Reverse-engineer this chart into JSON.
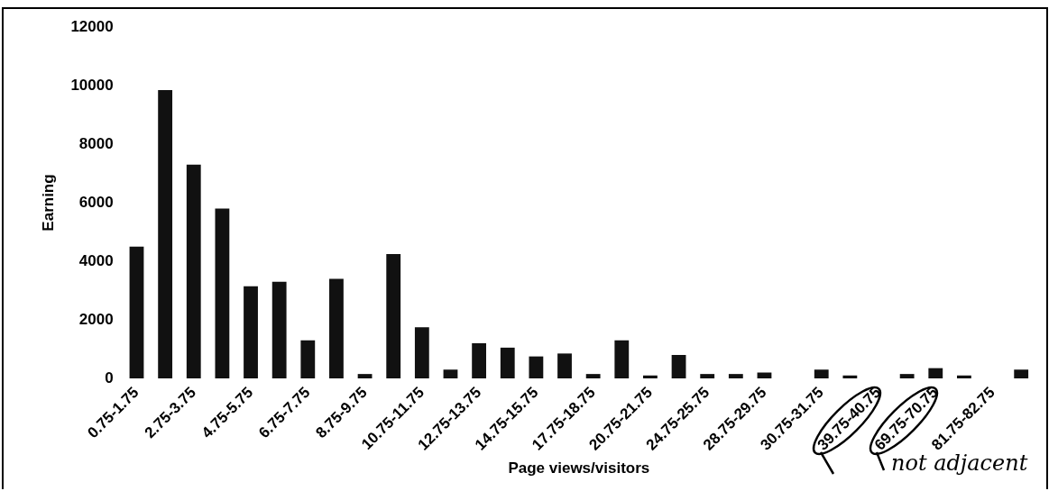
{
  "chart_data": {
    "type": "bar",
    "xlabel": "Page views/visitors",
    "ylabel": "Earning",
    "categories": [
      "0.75-1.75",
      null,
      "2.75-3.75",
      null,
      "4.75-5.75",
      null,
      "6.75-7.75",
      null,
      "8.75-9.75",
      null,
      "10.75-11.75",
      null,
      "12.75-13.75",
      null,
      "14.75-15.75",
      null,
      "17.75-18.75",
      null,
      "20.75-21.75",
      null,
      "24.75-25.75",
      null,
      "28.75-29.75",
      null,
      "30.75-31.75",
      null,
      "39.75-40.75",
      null,
      "69.75-70.75",
      null,
      "81.75-82.75",
      null
    ],
    "values": [
      4500,
      9850,
      7300,
      5800,
      3150,
      3300,
      1300,
      3400,
      150,
      4250,
      1750,
      300,
      1200,
      1050,
      750,
      850,
      150,
      1300,
      100,
      800,
      150,
      150,
      200,
      0,
      300,
      100,
      null,
      150,
      350,
      100,
      0,
      300
    ],
    "color": "#111111",
    "ylim": [
      0,
      12000
    ],
    "yticks": [
      0,
      2000,
      4000,
      6000,
      8000,
      10000,
      12000
    ],
    "annotations": [
      "not adjacent"
    ]
  }
}
